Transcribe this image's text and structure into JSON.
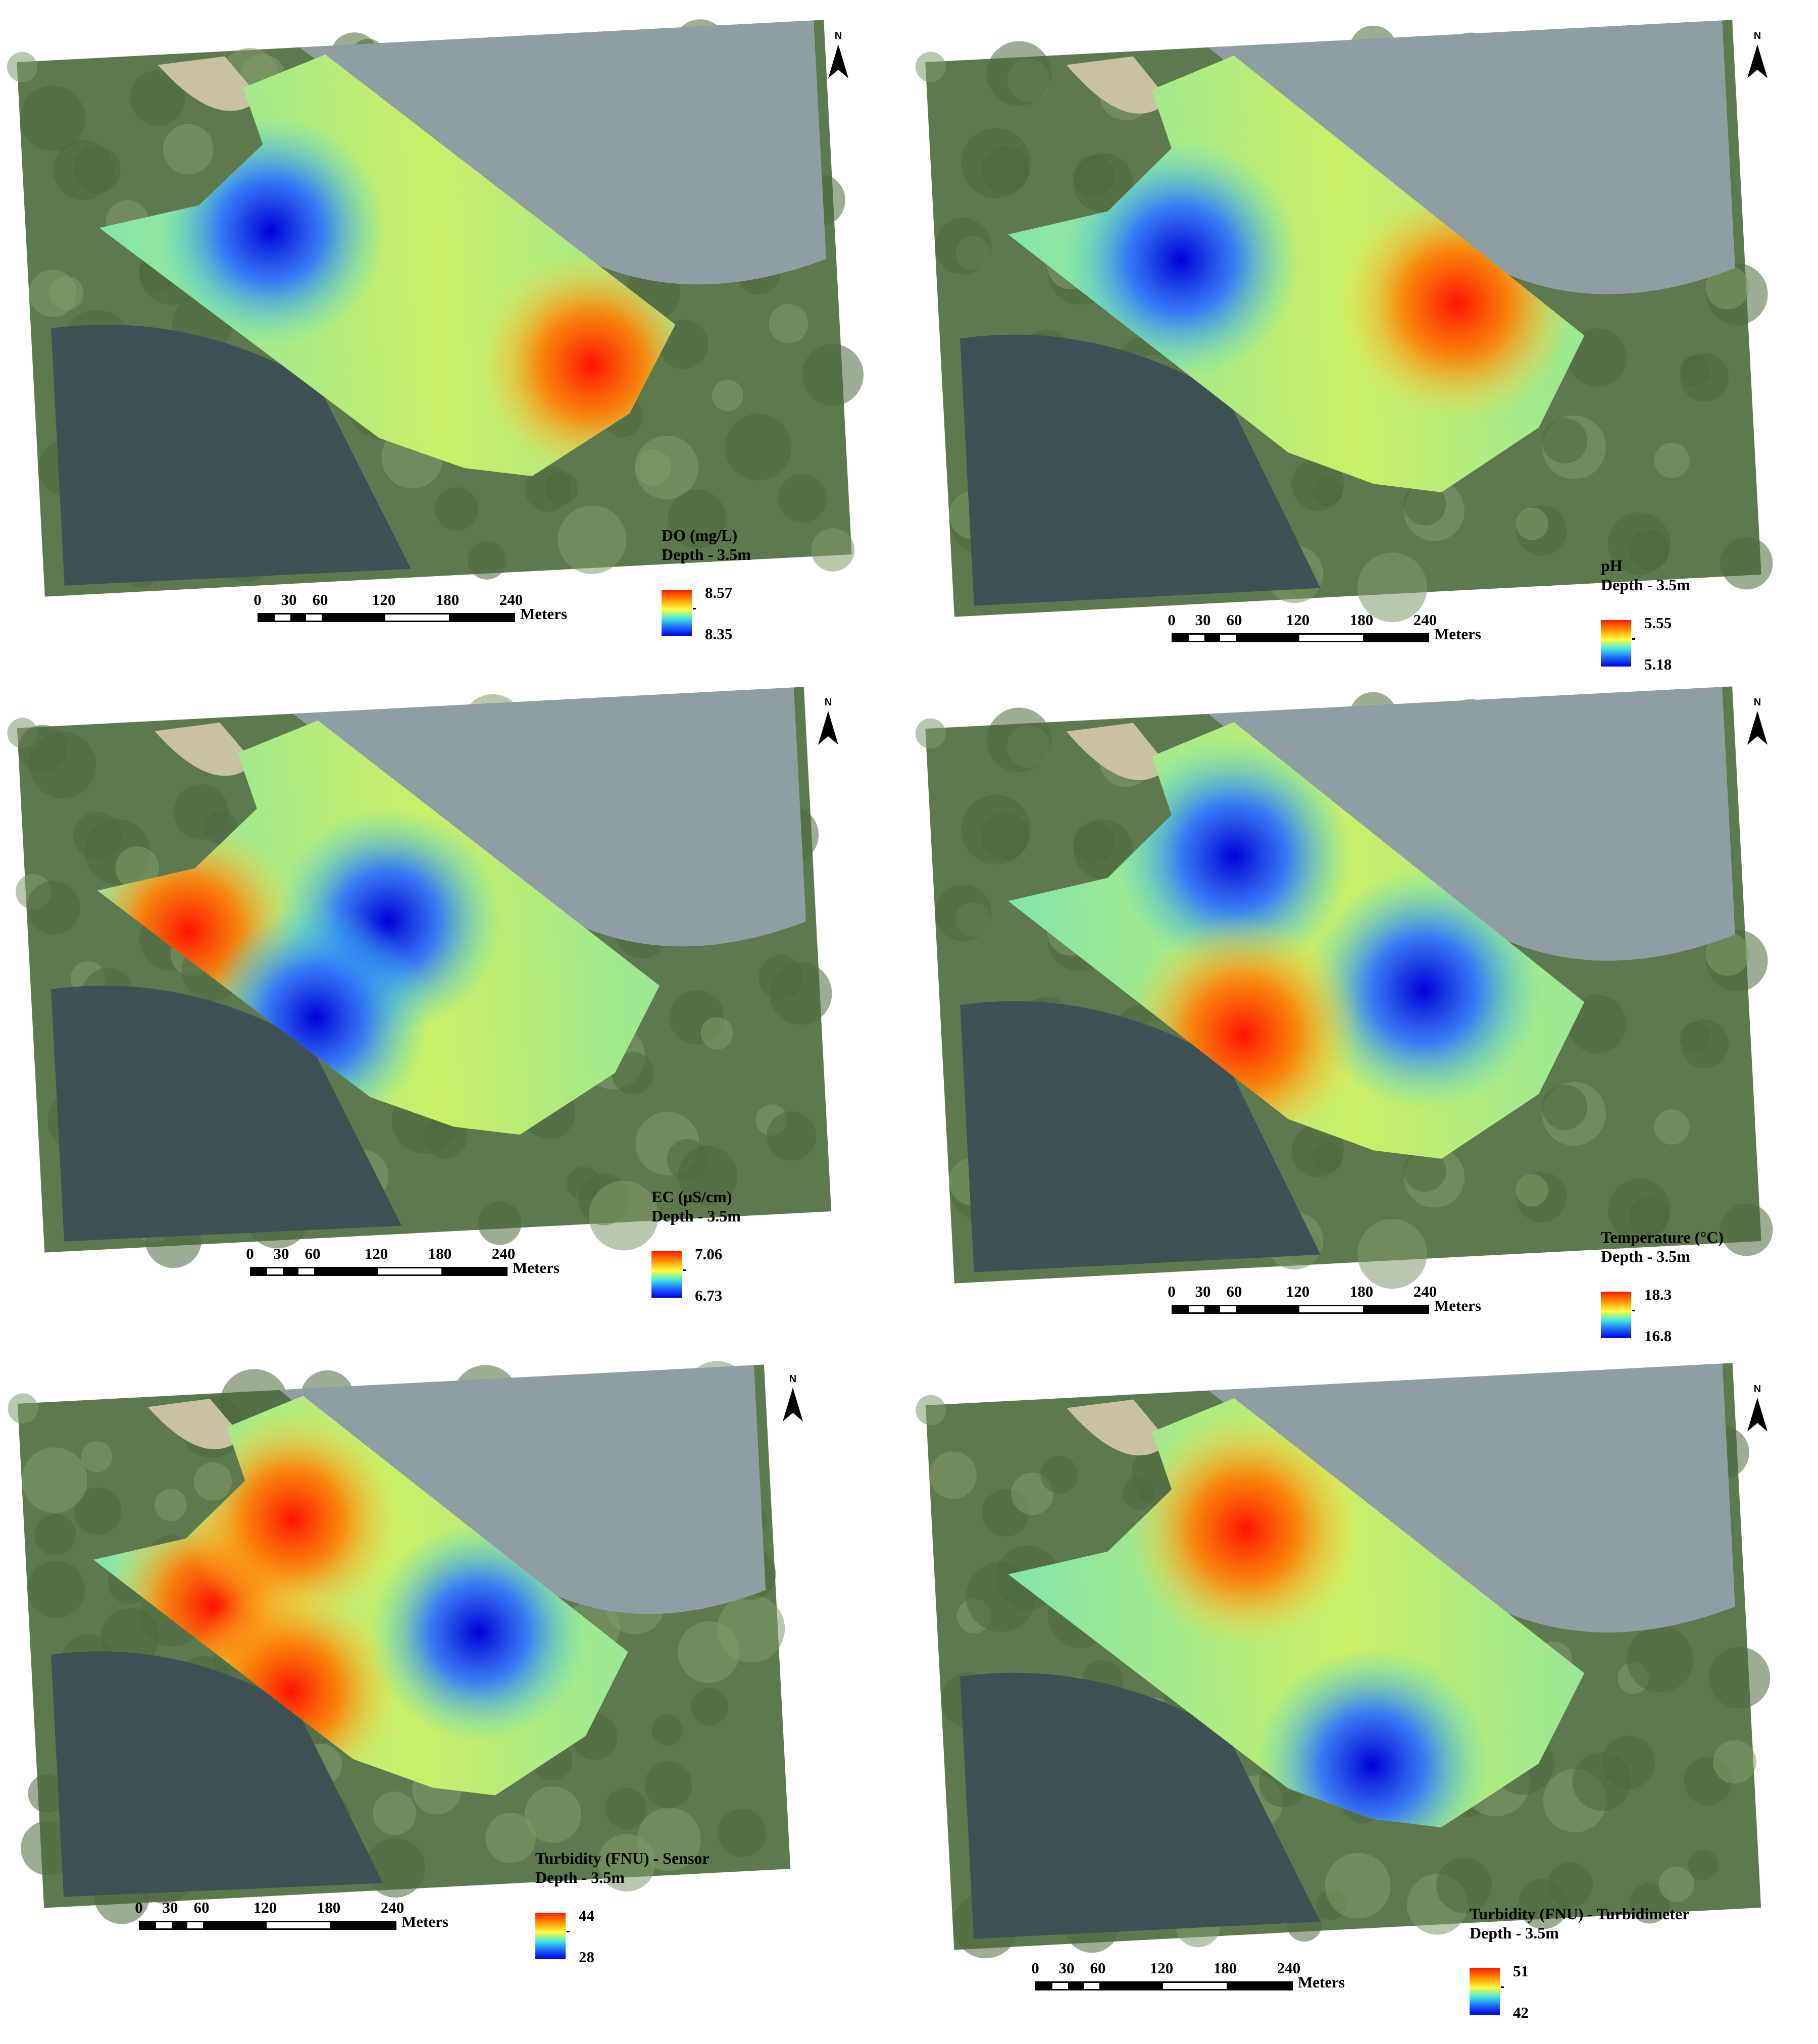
{
  "scale": {
    "ticks": [
      "0",
      "30",
      "60",
      "120",
      "180",
      "240"
    ],
    "unit": "Meters"
  },
  "north_label": "N",
  "panels": [
    {
      "parameter": "DO (mg/L)",
      "depth": "Depth - 3.5m",
      "max": "8.57",
      "min": "8.35",
      "spots": [
        {
          "u": 0.3,
          "v": 0.4,
          "level": "low"
        },
        {
          "u": 0.85,
          "v": 0.75,
          "level": "high"
        }
      ]
    },
    {
      "parameter": "pH",
      "depth": "Depth - 3.5m",
      "max": "5.55",
      "min": "5.18",
      "spots": [
        {
          "u": 0.3,
          "v": 0.45,
          "level": "low"
        },
        {
          "u": 0.78,
          "v": 0.58,
          "level": "high"
        }
      ]
    },
    {
      "parameter": "EC (μS/cm)",
      "depth": "Depth - 3.5m",
      "max": "7.06",
      "min": "6.73",
      "spots": [
        {
          "u": 0.16,
          "v": 0.48,
          "level": "high"
        },
        {
          "u": 0.52,
          "v": 0.48,
          "level": "low"
        },
        {
          "u": 0.38,
          "v": 0.7,
          "level": "low"
        }
      ]
    },
    {
      "parameter": "Temperature (°C)",
      "depth": "Depth - 3.5m",
      "max": "18.3",
      "min": "16.8",
      "spots": [
        {
          "u": 0.4,
          "v": 0.3,
          "level": "low"
        },
        {
          "u": 0.72,
          "v": 0.62,
          "level": "low"
        },
        {
          "u": 0.4,
          "v": 0.7,
          "level": "high"
        }
      ]
    },
    {
      "parameter": "Turbidity (FNU) - Sensor",
      "depth": "Depth - 3.5m",
      "max": "44",
      "min": "28",
      "spots": [
        {
          "u": 0.22,
          "v": 0.5,
          "level": "high"
        },
        {
          "u": 0.38,
          "v": 0.3,
          "level": "high"
        },
        {
          "u": 0.36,
          "v": 0.72,
          "level": "high"
        },
        {
          "u": 0.72,
          "v": 0.6,
          "level": "low"
        }
      ]
    },
    {
      "parameter": "Turbidity (FNU) - Turbidimeter",
      "depth": "Depth - 3.5m",
      "max": "51",
      "min": "42",
      "spots": [
        {
          "u": 0.42,
          "v": 0.3,
          "level": "high"
        },
        {
          "u": 0.62,
          "v": 0.85,
          "level": "low"
        }
      ]
    }
  ]
}
